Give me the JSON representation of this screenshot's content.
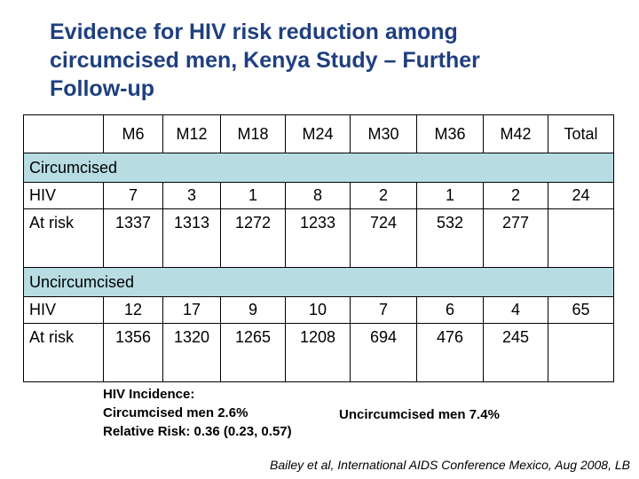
{
  "title": {
    "line1": "Evidence for HIV risk reduction  among",
    "line2": "circumcised men,  Kenya Study – Further",
    "line3": "Follow-up"
  },
  "table": {
    "headers": [
      "",
      "M6",
      "M12",
      "M18",
      "M24",
      "M30",
      "M36",
      "M42",
      "Total"
    ],
    "circumcised": {
      "label": "Circumcised",
      "hiv": [
        "HIV",
        "7",
        "3",
        "1",
        "8",
        "2",
        "1",
        "2",
        "24"
      ],
      "at_risk": [
        "At risk",
        "1337",
        "1313",
        "1272",
        "1233",
        "724",
        "532",
        "277",
        ""
      ]
    },
    "uncircumcised": {
      "label": "Uncircumcised",
      "hiv": [
        "HIV",
        "12",
        "17",
        "9",
        "10",
        "7",
        "6",
        "4",
        "65"
      ],
      "at_risk": [
        "At risk",
        "1356",
        "1320",
        "1265",
        "1208",
        "694",
        "476",
        "245",
        ""
      ]
    }
  },
  "stats": {
    "incidence_label": "HIV Incidence:",
    "circumcised_rate": "Circumcised men 2.6%",
    "uncircumcised_rate": "Uncircumcised men 7.4%",
    "relative_risk": "Relative Risk: 0.36 (0.23, 0.57)"
  },
  "citation": "Bailey et al, International AIDS Conference Mexico, Aug 2008, LB"
}
